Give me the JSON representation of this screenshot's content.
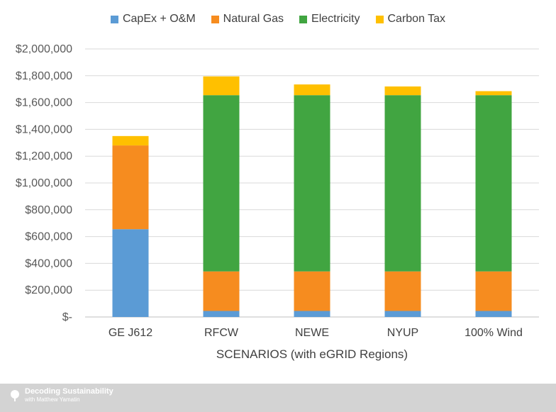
{
  "chart_data": {
    "type": "bar",
    "stacked": true,
    "categories": [
      "GE J612",
      "RFCW",
      "NEWE",
      "NYUP",
      "100% Wind"
    ],
    "series": [
      {
        "name": "CapEx + O&M",
        "color": "#5b9bd5",
        "values": [
          655000,
          45000,
          45000,
          45000,
          45000
        ]
      },
      {
        "name": "Natural Gas",
        "color": "#f68c1f",
        "values": [
          625000,
          295000,
          295000,
          295000,
          295000
        ]
      },
      {
        "name": "Electricity",
        "color": "#41a541",
        "values": [
          0,
          1315000,
          1315000,
          1315000,
          1315000
        ]
      },
      {
        "name": "Carbon Tax",
        "color": "#ffc000",
        "values": [
          70000,
          140000,
          80000,
          65000,
          30000
        ]
      }
    ],
    "xlabel": "SCENARIOS (with eGRID Regions)",
    "ylabel": "",
    "ylim": [
      0,
      2000000
    ],
    "yticks": [
      0,
      200000,
      400000,
      600000,
      800000,
      1000000,
      1200000,
      1400000,
      1600000,
      1800000,
      2000000
    ],
    "ytick_labels": [
      "$-",
      "$200,000",
      "$400,000",
      "$600,000",
      "$800,000",
      "$1,000,000",
      "$1,200,000",
      "$1,400,000",
      "$1,600,000",
      "$1,800,000",
      "$2,000,000"
    ],
    "grid": true,
    "legend_position": "top"
  },
  "footer": {
    "brand_name": "Decoding Sustainability",
    "brand_sub": "with Matthew Yamatin"
  }
}
